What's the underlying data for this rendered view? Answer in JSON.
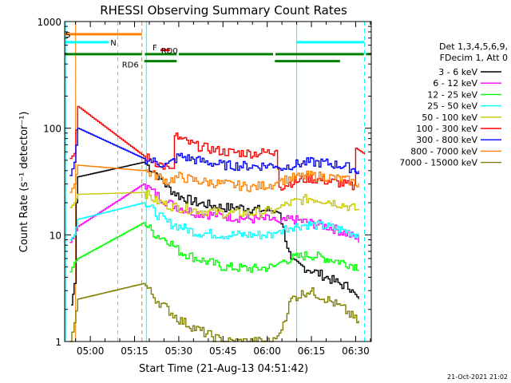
{
  "chart_data": {
    "type": "line",
    "title": "RHESSI Observing Summary Count Rates",
    "xlabel": "Start Time (21-Aug-13 04:51:42)",
    "ylabel": "Count Rate (s⁻¹ detector⁻¹)",
    "yscale": "log",
    "ylim": [
      1,
      1000
    ],
    "xlim_minutes": [
      -8.7,
      95.3
    ],
    "x_ticks": [
      {
        "label": "05:00",
        "min": 0
      },
      {
        "label": "05:15",
        "min": 15
      },
      {
        "label": "05:30",
        "min": 30
      },
      {
        "label": "05:45",
        "min": 45
      },
      {
        "label": "06:00",
        "min": 60
      },
      {
        "label": "06:15",
        "min": 75
      },
      {
        "label": "06:30",
        "min": 90
      }
    ],
    "y_ticks": [
      {
        "label": "1",
        "value": 1
      },
      {
        "label": "10",
        "value": 10
      },
      {
        "label": "100",
        "value": 100
      },
      {
        "label": "1000",
        "value": 1000
      }
    ],
    "legend_header": [
      "Det 1,3,4,5,6,9,",
      "FDecim 1, Att 0"
    ],
    "legend_position": "right",
    "series": [
      {
        "name": "3 - 6 keV",
        "color": "#000000",
        "points": [
          [
            -6.5,
            2.2
          ],
          [
            -5.5,
            3.5
          ],
          [
            -4.8,
            20
          ],
          [
            -4.3,
            35
          ],
          [
            18,
            48
          ],
          [
            22,
            38
          ],
          [
            26,
            28
          ],
          [
            30,
            23
          ],
          [
            36,
            20
          ],
          [
            45,
            18
          ],
          [
            52,
            18
          ],
          [
            58,
            17
          ],
          [
            62,
            17
          ],
          [
            64,
            16
          ],
          [
            68,
            5.5
          ],
          [
            72,
            5
          ],
          [
            76,
            4.5
          ],
          [
            80,
            4
          ],
          [
            84,
            3.5
          ],
          [
            88,
            3.2
          ],
          [
            91,
            2.5
          ]
        ]
      },
      {
        "name": "6 - 12 keV",
        "color": "#ff00ff",
        "points": [
          [
            -7,
            8.5
          ],
          [
            -5.5,
            10
          ],
          [
            -4.3,
            12
          ],
          [
            18,
            30
          ],
          [
            22,
            24
          ],
          [
            26,
            20
          ],
          [
            30,
            18
          ],
          [
            36,
            16
          ],
          [
            45,
            15
          ],
          [
            55,
            14
          ],
          [
            62,
            14
          ],
          [
            64,
            13
          ],
          [
            68,
            14
          ],
          [
            74,
            13
          ],
          [
            80,
            12
          ],
          [
            86,
            10.5
          ],
          [
            91,
            9
          ]
        ]
      },
      {
        "name": "12 - 25 keV",
        "color": "#00ff00",
        "points": [
          [
            -7,
            4.5
          ],
          [
            -5.5,
            5.5
          ],
          [
            -4.3,
            6
          ],
          [
            18,
            13
          ],
          [
            22,
            10
          ],
          [
            26,
            9
          ],
          [
            30,
            7
          ],
          [
            36,
            6
          ],
          [
            45,
            5
          ],
          [
            55,
            4.8
          ],
          [
            62,
            5
          ],
          [
            64,
            5.5
          ],
          [
            68,
            6
          ],
          [
            74,
            6.5
          ],
          [
            80,
            6
          ],
          [
            86,
            5.5
          ],
          [
            91,
            5
          ]
        ]
      },
      {
        "name": "25 - 50 keV",
        "color": "#00ffff",
        "points": [
          [
            -7,
            9
          ],
          [
            -5.5,
            10
          ],
          [
            -4.3,
            14
          ],
          [
            18,
            20
          ],
          [
            22,
            16
          ],
          [
            26,
            13
          ],
          [
            30,
            12
          ],
          [
            36,
            10.5
          ],
          [
            45,
            10
          ],
          [
            55,
            10
          ],
          [
            62,
            10
          ],
          [
            64,
            11
          ],
          [
            68,
            12
          ],
          [
            74,
            12.5
          ],
          [
            80,
            12
          ],
          [
            86,
            11
          ],
          [
            91,
            10
          ]
        ]
      },
      {
        "name": "50 - 100 keV",
        "color": "#c8c800",
        "points": [
          [
            -7,
            18
          ],
          [
            -5.5,
            20
          ],
          [
            -4.3,
            24
          ],
          [
            18,
            25
          ],
          [
            22,
            21
          ],
          [
            26,
            19
          ],
          [
            30,
            18
          ],
          [
            36,
            17
          ],
          [
            45,
            16
          ],
          [
            55,
            16
          ],
          [
            62,
            17
          ],
          [
            64,
            18
          ],
          [
            68,
            20
          ],
          [
            74,
            22
          ],
          [
            80,
            21
          ],
          [
            86,
            19
          ],
          [
            91,
            17
          ]
        ]
      },
      {
        "name": "100 - 300 keV",
        "color": "#ff0000",
        "points": [
          [
            -7,
            52
          ],
          [
            -5.5,
            58
          ],
          [
            -4.3,
            160
          ],
          [
            18,
            55
          ],
          [
            22,
            48
          ],
          [
            26,
            42
          ],
          [
            28,
            42
          ],
          [
            28.5,
            85
          ],
          [
            32,
            75
          ],
          [
            36,
            68
          ],
          [
            45,
            60
          ],
          [
            55,
            58
          ],
          [
            62,
            60
          ],
          [
            63,
            62
          ],
          [
            64,
            28
          ],
          [
            68,
            31
          ],
          [
            74,
            34
          ],
          [
            80,
            32
          ],
          [
            86,
            30
          ],
          [
            89.5,
            28
          ],
          [
            90,
            65
          ],
          [
            93,
            57
          ]
        ]
      },
      {
        "name": "300 - 800 keV",
        "color": "#0000ff",
        "points": [
          [
            -7,
            36
          ],
          [
            -5.5,
            48
          ],
          [
            -4.3,
            100
          ],
          [
            18,
            52
          ],
          [
            22,
            48
          ],
          [
            26,
            45
          ],
          [
            30,
            55
          ],
          [
            36,
            50
          ],
          [
            45,
            45
          ],
          [
            55,
            44
          ],
          [
            62,
            45
          ],
          [
            64,
            42
          ],
          [
            68,
            45
          ],
          [
            74,
            48
          ],
          [
            80,
            47
          ],
          [
            86,
            44
          ],
          [
            91,
            40
          ]
        ]
      },
      {
        "name": "800 - 7000 keV",
        "color": "#ff8000",
        "points": [
          [
            -7,
            25
          ],
          [
            -5.5,
            30
          ],
          [
            -4.3,
            45
          ],
          [
            18,
            40
          ],
          [
            22,
            36
          ],
          [
            26,
            32
          ],
          [
            30,
            35
          ],
          [
            36,
            32
          ],
          [
            45,
            30
          ],
          [
            55,
            28
          ],
          [
            62,
            30
          ],
          [
            64,
            32
          ],
          [
            68,
            34
          ],
          [
            74,
            36
          ],
          [
            80,
            35
          ],
          [
            86,
            33
          ],
          [
            91,
            30
          ]
        ]
      },
      {
        "name": "7000 - 15000 keV",
        "color": "#808000",
        "points": [
          [
            -7,
            1
          ],
          [
            -5.5,
            1.5
          ],
          [
            -4.3,
            2.5
          ],
          [
            18,
            3.5
          ],
          [
            22,
            2.5
          ],
          [
            26,
            2
          ],
          [
            30,
            1.6
          ],
          [
            36,
            1.3
          ],
          [
            45,
            1
          ],
          [
            55,
            1
          ],
          [
            62,
            1
          ],
          [
            64,
            1.2
          ],
          [
            68,
            2.5
          ],
          [
            74,
            3
          ],
          [
            80,
            2.5
          ],
          [
            86,
            2
          ],
          [
            91,
            1.5
          ]
        ]
      }
    ],
    "annotations": [
      {
        "label": "S",
        "color": "#ff8000",
        "x0": -8.7,
        "x1": 17.5,
        "yv": 760
      },
      {
        "label": "N",
        "color": "#00ffff",
        "x0": -8.7,
        "x1": 9.3,
        "yv": 640
      },
      {
        "label": "F",
        "color": "#ff0000",
        "x0": 23.8,
        "x1": 27,
        "yv": 540
      },
      {
        "label": "RD0",
        "color": "#008000",
        "x0": -8.7,
        "x1": 95.3,
        "yv": 495
      },
      {
        "label": "RD6",
        "color": "#008000",
        "x0": 18.3,
        "x1": 29.3,
        "yv": 425
      }
    ],
    "vlines": [
      {
        "min": -8.4,
        "color": "#00ffff",
        "dash": false
      },
      {
        "min": -5.0,
        "color": "#ff8000",
        "dash": false
      },
      {
        "min": 9.3,
        "color": "#00ffff",
        "dash": true
      },
      {
        "min": 17.5,
        "color": "#ff8000",
        "dash": true
      },
      {
        "min": 19.0,
        "color": "#00ffff",
        "dash": false
      },
      {
        "min": 70.0,
        "color": "#00ffff",
        "dash": false
      },
      {
        "min": 93.0,
        "color": "#00ffff",
        "dash": true
      }
    ],
    "footer_date": "21-Oct-2021 21:02"
  }
}
